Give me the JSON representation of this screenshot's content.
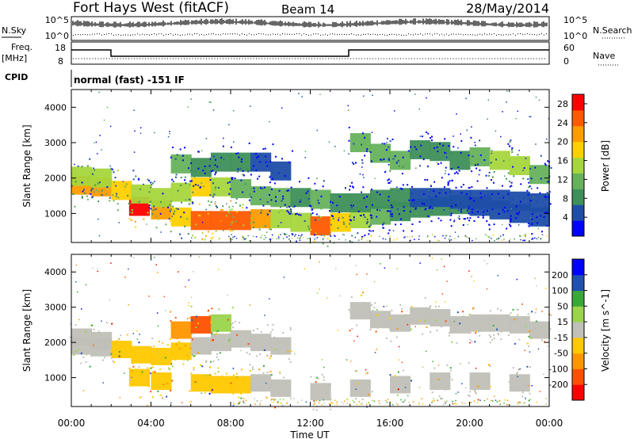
{
  "header": {
    "site": "Fort Hays West (fitACF)",
    "beam": "Beam 14",
    "date": "28/May/2014"
  },
  "summary": {
    "nsky_label": "N.Sky",
    "nsearch_label": "N.Search",
    "freq_label": "Freq.",
    "freq_unit": "[MHz]",
    "nave_label": "Nave",
    "cpid_label": "CPID",
    "cpid_text": "normal (fast) -151 IF",
    "noise_ticks": [
      "10^5",
      "10^0"
    ],
    "noise_ticks_right": [
      "10^5",
      "10^0"
    ],
    "freq_ticks": [
      "18",
      "8"
    ],
    "nave_ticks": [
      "60",
      "0"
    ]
  },
  "colors": {
    "power": [
      "#0000ff",
      "#1e4ea8",
      "#3e8f5a",
      "#66b25c",
      "#a6d63c",
      "#ffd000",
      "#ff9c00",
      "#ff5a00",
      "#ff0000"
    ],
    "velocity": [
      "#ff0000",
      "#ff5000",
      "#ff9600",
      "#ffc800",
      "#c0c0b8",
      "#9ad44a",
      "#38a838",
      "#2050b0",
      "#0000ff"
    ],
    "ground_scatter": "#c0c0b8"
  },
  "chart_data": [
    {
      "type": "heatmap",
      "title": "Power",
      "xlabel": "Time UT",
      "ylabel": "Slant Range [km]",
      "xlim": [
        "00:00",
        "24:00"
      ],
      "ylim": [
        180,
        4500
      ],
      "x_ticks": [
        "00:00",
        "04:00",
        "08:00",
        "12:00",
        "16:00",
        "20:00",
        "00:00"
      ],
      "y_ticks": [
        "1000",
        "2000",
        "3000",
        "4000"
      ],
      "colorbar": {
        "label": "Power [dB]",
        "ticks": [
          "4",
          "8",
          "12",
          "16",
          "20",
          "24",
          "28"
        ],
        "range": [
          0,
          30
        ]
      },
      "series": [
        {
          "band": "near",
          "points": [
            [
              3.4,
              1200,
              27
            ],
            [
              4.5,
              1100,
              22
            ],
            [
              5.5,
              900,
              18
            ],
            [
              6.5,
              800,
              26
            ],
            [
              7.5,
              800,
              26
            ],
            [
              8.5,
              800,
              24
            ],
            [
              9.5,
              850,
              20
            ],
            [
              10.5,
              850,
              14
            ],
            [
              11.5,
              750,
              16
            ],
            [
              12.5,
              650,
              24
            ],
            [
              13.5,
              750,
              18
            ],
            [
              14.5,
              850,
              14
            ],
            [
              15.5,
              950,
              10
            ],
            [
              16.5,
              1050,
              8
            ],
            [
              17.5,
              1150,
              8
            ],
            [
              18.5,
              1200,
              8
            ],
            [
              19.5,
              1250,
              8
            ],
            [
              20.5,
              1200,
              6
            ],
            [
              21.5,
              1100,
              6
            ],
            [
              22.5,
              1000,
              6
            ],
            [
              23.5,
              900,
              4
            ]
          ]
        },
        {
          "band": "mid",
          "points": [
            [
              0.5,
              1800,
              20
            ],
            [
              1.5,
              1750,
              22
            ],
            [
              2.5,
              1650,
              18
            ],
            [
              3.5,
              1550,
              14
            ],
            [
              4.5,
              1450,
              14
            ],
            [
              5.5,
              1600,
              16
            ],
            [
              6.5,
              1750,
              18
            ],
            [
              7.5,
              1750,
              16
            ],
            [
              8.5,
              1700,
              12
            ],
            [
              9.5,
              1500,
              10
            ],
            [
              10.5,
              1450,
              10
            ],
            [
              11.5,
              1450,
              8
            ],
            [
              12.5,
              1400,
              10
            ],
            [
              13.5,
              1300,
              8
            ],
            [
              14.5,
              1300,
              8
            ],
            [
              15.5,
              1400,
              8
            ],
            [
              16.5,
              1450,
              8
            ],
            [
              17.5,
              1450,
              6
            ],
            [
              18.5,
              1450,
              6
            ],
            [
              19.5,
              1400,
              6
            ],
            [
              20.5,
              1400,
              6
            ],
            [
              21.5,
              1400,
              6
            ],
            [
              22.5,
              1350,
              6
            ],
            [
              23.5,
              1300,
              4
            ]
          ]
        },
        {
          "band": "far",
          "points": [
            [
              0.5,
              2050,
              14
            ],
            [
              1.5,
              2000,
              16
            ],
            [
              5.5,
              2400,
              10
            ],
            [
              6.5,
              2300,
              8
            ],
            [
              7.5,
              2450,
              8
            ],
            [
              8.5,
              2450,
              8
            ],
            [
              9.5,
              2450,
              6
            ],
            [
              10.5,
              2200,
              6
            ],
            [
              14.5,
              3000,
              10
            ],
            [
              15.5,
              2700,
              12
            ],
            [
              16.5,
              2500,
              12
            ],
            [
              17.5,
              2800,
              8
            ],
            [
              18.5,
              2750,
              8
            ],
            [
              19.5,
              2500,
              8
            ],
            [
              20.5,
              2600,
              10
            ],
            [
              21.5,
              2500,
              14
            ],
            [
              22.5,
              2350,
              14
            ],
            [
              23.5,
              2100,
              10
            ]
          ]
        }
      ]
    },
    {
      "type": "heatmap",
      "title": "Velocity",
      "xlabel": "Time UT",
      "ylabel": "Slant Range [km]",
      "xlim": [
        "00:00",
        "24:00"
      ],
      "ylim": [
        180,
        4500
      ],
      "x_ticks": [
        "00:00",
        "04:00",
        "08:00",
        "12:00",
        "16:00",
        "20:00",
        "00:00"
      ],
      "y_ticks": [
        "1000",
        "2000",
        "3000",
        "4000"
      ],
      "colorbar": {
        "label": "Velocity [m s^-1]",
        "ticks": [
          "200",
          "100",
          "50",
          "15",
          "-15",
          "-50",
          "-100",
          "-200"
        ],
        "range": [
          -250,
          250
        ]
      },
      "series": [
        {
          "band": "near",
          "points": [
            [
              3.4,
              1000,
              -50
            ],
            [
              4.5,
              900,
              -50
            ],
            [
              6.5,
              850,
              -50
            ],
            [
              7.5,
              800,
              -50
            ],
            [
              8.5,
              800,
              -50
            ],
            [
              9.5,
              850,
              -15
            ],
            [
              10.5,
              700,
              0
            ],
            [
              12.5,
              600,
              0
            ],
            [
              14.5,
              700,
              0
            ],
            [
              16.5,
              800,
              0
            ],
            [
              18.5,
              900,
              0
            ],
            [
              20.5,
              900,
              0
            ],
            [
              22.5,
              850,
              0
            ]
          ]
        },
        {
          "band": "mid",
          "points": [
            [
              0.5,
              1900,
              0
            ],
            [
              1.5,
              1850,
              0
            ],
            [
              2.5,
              1800,
              -50
            ],
            [
              3.5,
              1650,
              -50
            ],
            [
              4.5,
              1600,
              -50
            ],
            [
              5.5,
              1750,
              -50
            ],
            [
              6.5,
              1900,
              0
            ],
            [
              7.5,
              2000,
              0
            ],
            [
              8.5,
              2100,
              0
            ],
            [
              9.5,
              2000,
              0
            ],
            [
              10.5,
              1900,
              0
            ]
          ]
        },
        {
          "band": "far",
          "points": [
            [
              0.5,
              2150,
              0
            ],
            [
              1.5,
              2050,
              0
            ],
            [
              5.5,
              2350,
              -100
            ],
            [
              6.5,
              2500,
              -150
            ],
            [
              7.5,
              2550,
              30
            ],
            [
              14.5,
              2900,
              0
            ],
            [
              15.5,
              2650,
              0
            ],
            [
              16.5,
              2550,
              0
            ],
            [
              17.5,
              2750,
              0
            ],
            [
              18.5,
              2700,
              0
            ],
            [
              19.5,
              2500,
              0
            ],
            [
              20.5,
              2550,
              0
            ],
            [
              21.5,
              2550,
              0
            ],
            [
              22.5,
              2500,
              0
            ],
            [
              23.5,
              2350,
              0
            ]
          ]
        }
      ]
    }
  ]
}
